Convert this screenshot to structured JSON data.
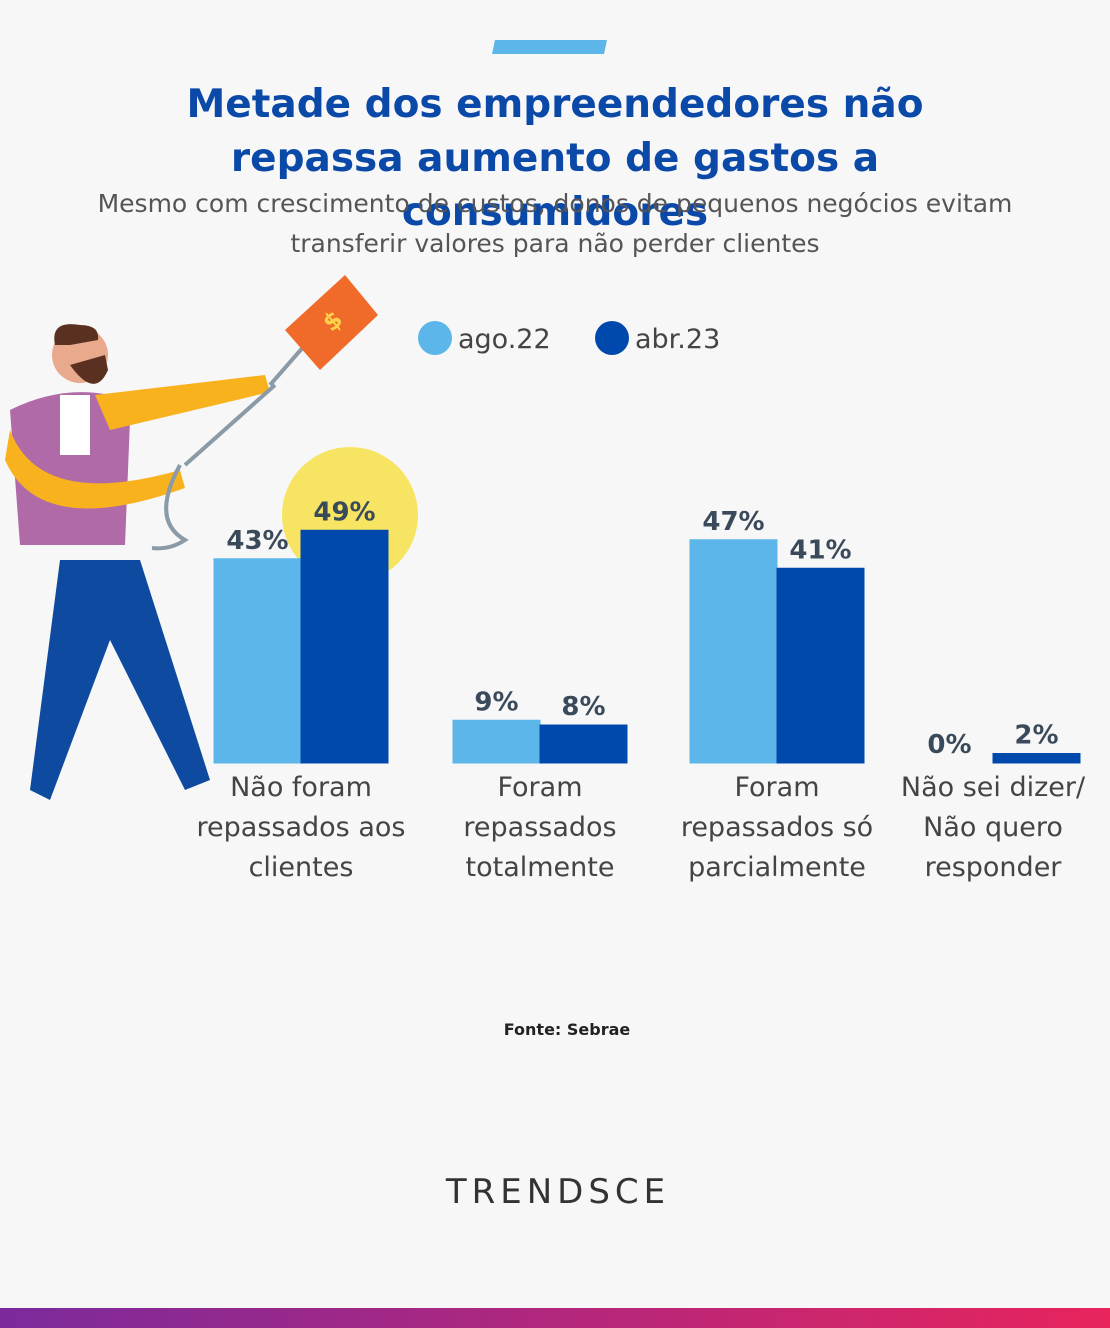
{
  "chart_data": {
    "type": "bar",
    "title": "Metade dos empreendedores não repassa aumento de gastos a consumidores",
    "subtitle": "Mesmo com crescimento de custos, donos de pequenos negócios evitam transferir valores para não perder clientes",
    "categories": [
      "Não foram repassados aos clientes",
      "Foram repassados totalmente",
      "Foram repassados só parcialmente",
      "Não sei dizer/ Não quero responder"
    ],
    "series": [
      {
        "name": "ago.22",
        "color": "#5cb6e9",
        "values": [
          43,
          9,
          47,
          0
        ],
        "value_labels": [
          "43%",
          "9%",
          "47%",
          "0%"
        ]
      },
      {
        "name": "abr.23",
        "color": "#0049ac",
        "values": [
          49,
          8,
          41,
          2
        ],
        "value_labels": [
          "49%",
          "8%",
          "41%",
          "2%"
        ]
      }
    ],
    "source": "Fonte: Sebrae"
  },
  "brand": "TRENDSCE"
}
